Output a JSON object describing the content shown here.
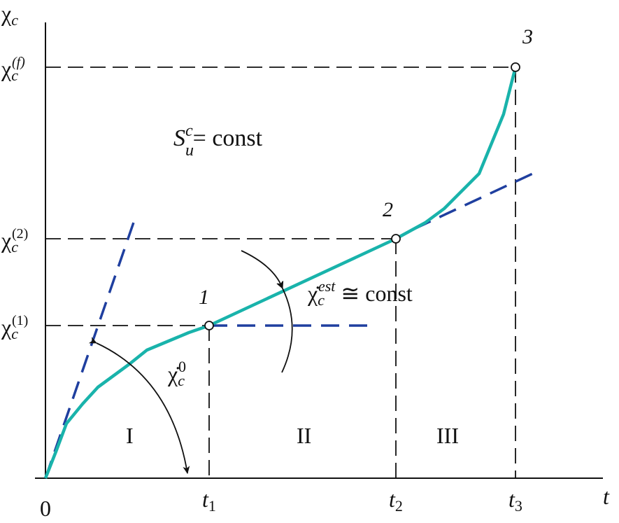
{
  "y_axis": {
    "label": "χ",
    "label_sub": "c"
  },
  "x_axis": {
    "label": "t",
    "origin": "0"
  },
  "y_levels": [
    {
      "base": "χ",
      "sub": "c",
      "sup": "(1)"
    },
    {
      "base": "χ",
      "sub": "c",
      "sup": "(2)"
    },
    {
      "base": "χ",
      "sub": "c",
      "sup": "(f)"
    }
  ],
  "x_ticks": [
    {
      "base": "t",
      "sub": "1"
    },
    {
      "base": "t",
      "sub": "2"
    },
    {
      "base": "t",
      "sub": "3"
    }
  ],
  "points": [
    "1",
    "2",
    "3"
  ],
  "stages": [
    "I",
    "II",
    "III"
  ],
  "annotations": {
    "stress": {
      "base": "S",
      "sub": "u",
      "sup": "c",
      "rest": "= const"
    },
    "steady_rate": {
      "base": "χ̇",
      "sub": "c",
      "sup": "est",
      "rest": " ≅ const"
    },
    "initial_rate": {
      "base": "χ̇",
      "sub": "c",
      "sup": "0"
    }
  },
  "colors": {
    "curve": "#19b3ab",
    "tangent": "#1f3f9f",
    "axes": "#111111"
  }
}
